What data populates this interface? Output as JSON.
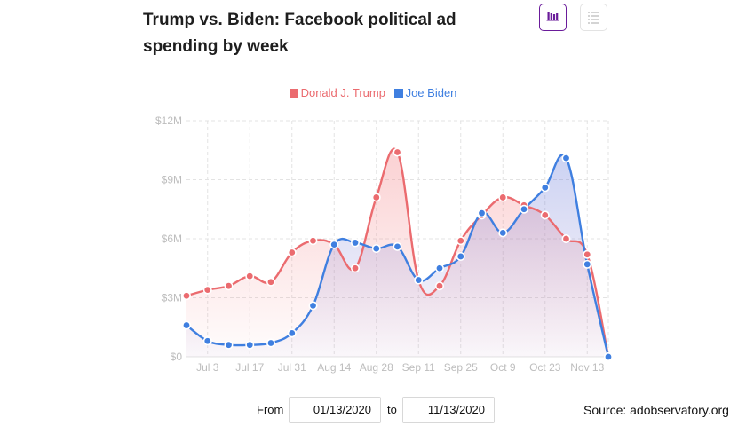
{
  "header": {
    "title": "Trump vs. Biden: Facebook political ad spending by week",
    "chart_view_icon": "bar-chart-icon",
    "table_view_icon": "list-icon"
  },
  "colors": {
    "trump": "#eb6b6f",
    "biden": "#3f7fe0",
    "active_icon": "#6a1b9a",
    "grid": "#e3e3e3",
    "tick": "#bdbdbd"
  },
  "chart_data": {
    "type": "line",
    "title": "Trump vs. Biden: Facebook political ad spending by week",
    "xlabel": "",
    "ylabel": "",
    "x_ticks": [
      "Jul 3",
      "Jul 17",
      "Jul 31",
      "Aug 14",
      "Aug 28",
      "Sep 11",
      "Sep 25",
      "Oct 9",
      "Oct 23",
      "Nov 13"
    ],
    "y_ticks": [
      "$0",
      "$3M",
      "$6M",
      "$9M",
      "$12M"
    ],
    "ylim": [
      0,
      12
    ],
    "y_unit": "$M",
    "grid": true,
    "legend_position": "top-center",
    "series": [
      {
        "name": "Donald J. Trump",
        "values": [
          3.1,
          3.4,
          3.6,
          4.1,
          3.8,
          5.3,
          5.9,
          5.7,
          4.5,
          8.1,
          10.4,
          3.9,
          3.6,
          5.9,
          7.2,
          8.1,
          7.7,
          7.2,
          6.0,
          5.2,
          0.0
        ]
      },
      {
        "name": "Joe Biden",
        "values": [
          1.6,
          0.8,
          0.6,
          0.6,
          0.7,
          1.2,
          2.6,
          5.7,
          5.8,
          5.5,
          5.6,
          3.9,
          4.5,
          5.1,
          7.3,
          6.3,
          7.5,
          8.6,
          10.1,
          4.7,
          0.0
        ]
      }
    ]
  },
  "controls": {
    "from_label": "From",
    "from_value": "01/13/2020",
    "to_label": "to",
    "to_value": "11/13/2020"
  },
  "source_text": "Source: adobservatory.org"
}
